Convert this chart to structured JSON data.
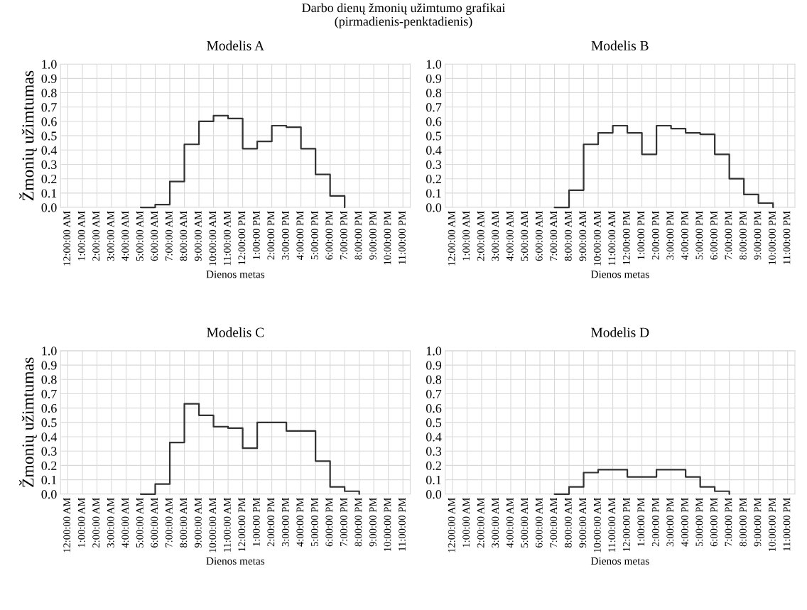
{
  "chart_data": [
    {
      "type": "step",
      "title": "Modelis A",
      "subtitle": "Darbo dienų žmonių užimtumo grafikai\n(pirmadienis-penktadienis)",
      "ylabel": "Žmonių užimtumas",
      "xlabel": "Dienos metas",
      "categories": [
        "12:00:00 AM",
        "1:00:00 AM",
        "2:00:00 AM",
        "3:00:00 AM",
        "4:00:00 AM",
        "5:00:00 AM",
        "6:00:00 AM",
        "7:00:00 AM",
        "8:00:00 AM",
        "9:00:00 AM",
        "10:00:00 AM",
        "11:00:00 AM",
        "12:00:00 PM",
        "1:00:00 PM",
        "2:00:00 PM",
        "3:00:00 PM",
        "4:00:00 PM",
        "5:00:00 PM",
        "6:00:00 PM",
        "7:00:00 PM",
        "8:00:00 PM",
        "9:00:00 PM",
        "10:00:00 PM",
        "11:00:00 PM"
      ],
      "series": [
        {
          "color": "#333333",
          "values": [
            null,
            null,
            null,
            null,
            null,
            0,
            0.02,
            0.18,
            0.44,
            0.6,
            0.64,
            0.62,
            0.41,
            0.46,
            0.57,
            0.56,
            0.41,
            0.23,
            0.08,
            0,
            null,
            null,
            null,
            null
          ]
        }
      ],
      "ylim": [
        0,
        1
      ],
      "yticks": [
        {
          "value": 0,
          "label": "0.0"
        },
        {
          "value": 0.1,
          "label": "0.1"
        },
        {
          "value": 0.2,
          "label": "0.2"
        },
        {
          "value": 0.3,
          "label": "0.3"
        },
        {
          "value": 0.4,
          "label": "0.4"
        },
        {
          "value": 0.5,
          "label": "0.5"
        },
        {
          "value": 0.6,
          "label": "0.6"
        },
        {
          "value": 0.7,
          "label": "0.7"
        },
        {
          "value": 0.8,
          "label": "0.8"
        },
        {
          "value": 0.9,
          "label": "0.9"
        },
        {
          "value": 1,
          "label": "1.0"
        }
      ],
      "grid": true
    },
    {
      "type": "step",
      "title": "Modelis B",
      "xlabel": "Dienos metas",
      "categories": [
        "12:00:00 AM",
        "1:00:00 AM",
        "2:00:00 AM",
        "3:00:00 AM",
        "4:00:00 AM",
        "5:00:00 AM",
        "6:00:00 AM",
        "7:00:00 AM",
        "8:00:00 AM",
        "9:00:00 AM",
        "10:00:00 AM",
        "11:00:00 AM",
        "12:00:00 PM",
        "1:00:00 PM",
        "2:00:00 PM",
        "3:00:00 PM",
        "4:00:00 PM",
        "5:00:00 PM",
        "6:00:00 PM",
        "7:00:00 PM",
        "8:00:00 PM",
        "9:00:00 PM",
        "10:00:00 PM",
        "11:00:00 PM"
      ],
      "series": [
        {
          "color": "#333333",
          "values": [
            null,
            null,
            null,
            null,
            null,
            null,
            null,
            0,
            0.12,
            0.44,
            0.52,
            0.57,
            0.52,
            0.37,
            0.57,
            0.55,
            0.52,
            0.51,
            0.37,
            0.2,
            0.09,
            0.03,
            0,
            null
          ]
        }
      ],
      "ylim": [
        0,
        1
      ],
      "yticks": [
        {
          "value": 0,
          "label": "0.0"
        },
        {
          "value": 0.1,
          "label": "0.1"
        },
        {
          "value": 0.2,
          "label": "0.2"
        },
        {
          "value": 0.3,
          "label": "0.3"
        },
        {
          "value": 0.4,
          "label": "0.4"
        },
        {
          "value": 0.5,
          "label": "0.5"
        },
        {
          "value": 0.6,
          "label": "0.6"
        },
        {
          "value": 0.7,
          "label": "0.7"
        },
        {
          "value": 0.8,
          "label": "0.8"
        },
        {
          "value": 0.9,
          "label": "0.9"
        },
        {
          "value": 1,
          "label": "1.0"
        }
      ],
      "grid": true
    },
    {
      "type": "step",
      "title": "Modelis C",
      "ylabel": "Žmonių užimtumas",
      "xlabel": "Dienos metas",
      "categories": [
        "12:00:00 AM",
        "1:00:00 AM",
        "2:00:00 AM",
        "3:00:00 AM",
        "4:00:00 AM",
        "5:00:00 AM",
        "6:00:00 AM",
        "7:00:00 AM",
        "8:00:00 AM",
        "9:00:00 AM",
        "10:00:00 AM",
        "11:00:00 AM",
        "12:00:00 PM",
        "1:00:00 PM",
        "2:00:00 PM",
        "3:00:00 PM",
        "4:00:00 PM",
        "5:00:00 PM",
        "6:00:00 PM",
        "7:00:00 PM",
        "8:00:00 PM",
        "9:00:00 PM",
        "10:00:00 PM",
        "11:00:00 PM"
      ],
      "series": [
        {
          "color": "#333333",
          "values": [
            null,
            null,
            null,
            null,
            null,
            0,
            0.07,
            0.36,
            0.63,
            0.55,
            0.47,
            0.46,
            0.32,
            0.5,
            0.5,
            0.44,
            0.44,
            0.23,
            0.05,
            0.02,
            0,
            null,
            null,
            null
          ]
        }
      ],
      "ylim": [
        0,
        1
      ],
      "yticks": [
        {
          "value": 0,
          "label": "0.0"
        },
        {
          "value": 0.1,
          "label": "0.1"
        },
        {
          "value": 0.2,
          "label": "0.2"
        },
        {
          "value": 0.3,
          "label": "0.3"
        },
        {
          "value": 0.4,
          "label": "0.4"
        },
        {
          "value": 0.5,
          "label": "0.5"
        },
        {
          "value": 0.6,
          "label": "0.6"
        },
        {
          "value": 0.7,
          "label": "0.7"
        },
        {
          "value": 0.8,
          "label": "0.8"
        },
        {
          "value": 0.9,
          "label": "0.9"
        },
        {
          "value": 1,
          "label": "1.0"
        }
      ],
      "grid": true
    },
    {
      "type": "step",
      "title": "Modelis D",
      "xlabel": "Dienos metas",
      "categories": [
        "12:00:00 AM",
        "1:00:00 AM",
        "2:00:00 AM",
        "3:00:00 AM",
        "4:00:00 AM",
        "5:00:00 AM",
        "6:00:00 AM",
        "7:00:00 AM",
        "8:00:00 AM",
        "9:00:00 AM",
        "10:00:00 AM",
        "11:00:00 AM",
        "12:00:00 PM",
        "1:00:00 PM",
        "2:00:00 PM",
        "3:00:00 PM",
        "4:00:00 PM",
        "5:00:00 PM",
        "6:00:00 PM",
        "7:00:00 PM",
        "8:00:00 PM",
        "9:00:00 PM",
        "10:00:00 PM",
        "11:00:00 PM"
      ],
      "series": [
        {
          "color": "#333333",
          "values": [
            null,
            null,
            null,
            null,
            null,
            null,
            null,
            0,
            0.05,
            0.15,
            0.17,
            0.17,
            0.12,
            0.12,
            0.17,
            0.17,
            0.12,
            0.05,
            0.02,
            0,
            null,
            null,
            null,
            null
          ]
        }
      ],
      "ylim": [
        0,
        1
      ],
      "yticks": [
        {
          "value": 0,
          "label": "0.0"
        },
        {
          "value": 0.1,
          "label": "0.1"
        },
        {
          "value": 0.2,
          "label": "0.2"
        },
        {
          "value": 0.3,
          "label": "0.3"
        },
        {
          "value": 0.4,
          "label": "0.4"
        },
        {
          "value": 0.5,
          "label": "0.5"
        },
        {
          "value": 0.6,
          "label": "0.6"
        },
        {
          "value": 0.7,
          "label": "0.7"
        },
        {
          "value": 0.8,
          "label": "0.8"
        },
        {
          "value": 0.9,
          "label": "0.9"
        },
        {
          "value": 1,
          "label": "1.0"
        }
      ],
      "grid": true
    }
  ]
}
